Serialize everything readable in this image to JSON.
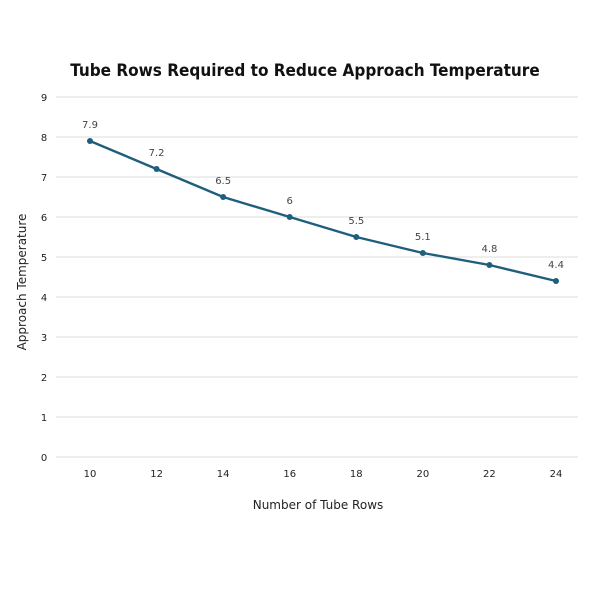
{
  "chart_data": {
    "type": "line",
    "title": "Tube Rows Required to Reduce Approach Temperature",
    "xlabel": "Number of Tube Rows",
    "ylabel": "Approach Temperature",
    "x": [
      10,
      12,
      14,
      16,
      18,
      20,
      22,
      24
    ],
    "series": [
      {
        "name": "Approach Temperature",
        "values": [
          7.9,
          7.2,
          6.5,
          6,
          5.5,
          5.1,
          4.8,
          4.4
        ],
        "labels": [
          "7.9",
          "7.2",
          "6.5",
          "6",
          "5.5",
          "5.1",
          "4.8",
          "4.4"
        ]
      }
    ],
    "ylim": [
      0,
      9
    ],
    "yticks": [
      0,
      1,
      2,
      3,
      4,
      5,
      6,
      7,
      8,
      9
    ],
    "grid": true,
    "legend": "none",
    "colors": {
      "series": "#1f5f7d",
      "grid": "#dddddd"
    }
  }
}
